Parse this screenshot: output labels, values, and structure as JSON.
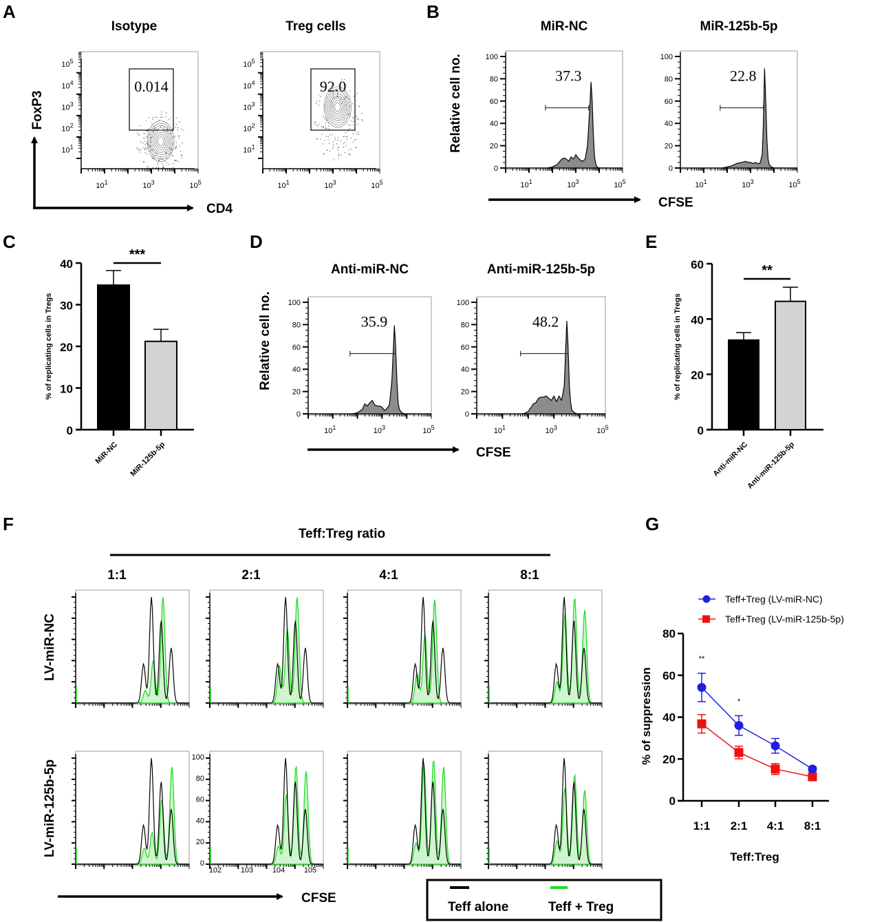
{
  "chart_data": [
    {
      "panel": "A",
      "type": "scatter",
      "subtype": "flow-contour",
      "xlabel": "CD4",
      "ylabel": "FoxP3",
      "x_scale": "log",
      "y_scale": "log",
      "xticks": [
        "10^1",
        "10^3",
        "10^5"
      ],
      "yticks": [
        "10^1",
        "10^2",
        "10^3",
        "10^4",
        "10^5"
      ],
      "plots": [
        {
          "title": "Isotype",
          "gate_value": "0.014",
          "population_center_log": [
            3.4,
            1.4
          ]
        },
        {
          "title": "Treg cells",
          "gate_value": "92.0",
          "population_center_log": [
            3.2,
            3.0
          ]
        }
      ]
    },
    {
      "panel": "B",
      "type": "area",
      "subtype": "flow-histogram",
      "xlabel": "CFSE",
      "ylabel": "Relative cell no.",
      "x_scale": "log",
      "xticks": [
        "10^1",
        "10^3",
        "10^5"
      ],
      "yticks": [
        0,
        20,
        40,
        60,
        80,
        100
      ],
      "ylim": [
        0,
        100
      ],
      "plots": [
        {
          "title": "MiR-NC",
          "gate_value": "37.3",
          "peak_height": 77,
          "x_log": [
            1.8,
            2.0,
            2.2,
            2.4,
            2.5,
            2.6,
            2.7,
            2.8,
            2.9,
            3.0,
            3.1,
            3.2,
            3.3,
            3.4,
            3.5,
            3.6,
            3.65,
            3.7,
            3.75,
            3.8,
            3.85,
            3.9,
            4.0,
            4.1,
            4.3
          ],
          "y": [
            0,
            1,
            3,
            8,
            9,
            8,
            6,
            10,
            8,
            12,
            9,
            7,
            6,
            8,
            20,
            55,
            77,
            60,
            30,
            10,
            4,
            1,
            0,
            0,
            0
          ]
        },
        {
          "title": "MiR-125b-5p",
          "gate_value": "22.8",
          "peak_height": 89,
          "x_log": [
            1.8,
            2.0,
            2.2,
            2.4,
            2.6,
            2.8,
            2.9,
            3.0,
            3.1,
            3.2,
            3.3,
            3.4,
            3.5,
            3.55,
            3.6,
            3.65,
            3.7,
            3.75,
            3.8,
            3.9,
            4.0,
            4.3
          ],
          "y": [
            0,
            1,
            2,
            4,
            5,
            6,
            5,
            5,
            4,
            5,
            4,
            4,
            12,
            40,
            89,
            60,
            25,
            8,
            3,
            1,
            0,
            0
          ]
        }
      ]
    },
    {
      "panel": "C",
      "type": "bar",
      "categories": [
        "MiR-NC",
        "MiR-125b-5p"
      ],
      "values": [
        34.7,
        21.2
      ],
      "errors": [
        3.5,
        2.9
      ],
      "colors": [
        "#000000",
        "#d3d3d3"
      ],
      "ylabel": "% of replicating cells in Tregs",
      "ylim": [
        0,
        40
      ],
      "yticks": [
        0,
        10,
        20,
        30,
        40
      ],
      "significance": "***"
    },
    {
      "panel": "D",
      "type": "area",
      "subtype": "flow-histogram",
      "xlabel": "CFSE",
      "ylabel": "Relative cell no.",
      "x_scale": "log",
      "xticks": [
        "10^1",
        "10^3",
        "10^5"
      ],
      "yticks": [
        0,
        20,
        40,
        60,
        80,
        100
      ],
      "ylim": [
        0,
        100
      ],
      "plots": [
        {
          "title": "Anti-miR-NC",
          "gate_value": "35.9",
          "peak_height": 79,
          "x_log": [
            1.8,
            2.0,
            2.2,
            2.3,
            2.4,
            2.5,
            2.6,
            2.7,
            2.8,
            2.9,
            3.0,
            3.1,
            3.2,
            3.3,
            3.4,
            3.5,
            3.55,
            3.6,
            3.65,
            3.7,
            3.8,
            3.9,
            4.0,
            4.3
          ],
          "y": [
            0,
            1,
            4,
            9,
            7,
            10,
            12,
            8,
            7,
            7,
            6,
            3,
            5,
            8,
            30,
            79,
            60,
            30,
            10,
            4,
            1,
            0,
            0,
            0
          ]
        },
        {
          "title": "Anti-miR-125b-5p",
          "gate_value": "48.2",
          "peak_height": 83,
          "x_log": [
            1.8,
            2.0,
            2.2,
            2.3,
            2.4,
            2.5,
            2.6,
            2.7,
            2.8,
            2.9,
            3.0,
            3.1,
            3.2,
            3.3,
            3.4,
            3.5,
            3.55,
            3.6,
            3.65,
            3.7,
            3.8,
            3.9,
            4.0,
            4.3
          ],
          "y": [
            0,
            2,
            9,
            10,
            14,
            15,
            15,
            16,
            14,
            12,
            16,
            11,
            16,
            12,
            25,
            83,
            60,
            25,
            10,
            3,
            1,
            0,
            0,
            0
          ]
        }
      ]
    },
    {
      "panel": "E",
      "type": "bar",
      "categories": [
        "Anti-miR-NC",
        "Anti-miR-125b-5p"
      ],
      "values": [
        32.4,
        46.4
      ],
      "errors": [
        2.7,
        5.1
      ],
      "colors": [
        "#000000",
        "#d3d3d3"
      ],
      "ylabel": "% of replicating cells in Tregs",
      "ylim": [
        0,
        60
      ],
      "yticks": [
        0,
        20,
        40,
        60
      ],
      "significance": "**"
    },
    {
      "panel": "F",
      "type": "area",
      "subtype": "flow-histogram-overlay",
      "header": "Teff:Treg ratio",
      "columns": [
        "1:1",
        "2:1",
        "4:1",
        "8:1"
      ],
      "rows": [
        "LV-miR-NC",
        "LV-miR-125b-5p"
      ],
      "xlabel": "CFSE",
      "legend": [
        {
          "label": "Teff alone",
          "color": "#000000"
        },
        {
          "label": "Teff + Treg",
          "color": "#22dd22"
        }
      ],
      "inset_ticks": {
        "y": [
          0,
          20,
          40,
          60,
          80,
          100
        ],
        "x": [
          "10^2",
          "10^3",
          "10^4",
          "10^5"
        ]
      },
      "teff_alone_peaks": [
        37,
        100,
        78,
        52
      ],
      "teff_treg_peaks": {
        "LV-miR-NC": [
          [
            12,
            40,
            100,
            0
          ],
          [
            35,
            70,
            100,
            0
          ],
          [
            28,
            65,
            98,
            0
          ],
          [
            20,
            85,
            100,
            88
          ]
        ],
        "LV-miR-125b-5p": [
          [
            15,
            30,
            62,
            92
          ],
          [
            17,
            66,
            93,
            88
          ],
          [
            20,
            95,
            99,
            92
          ],
          [
            22,
            72,
            85,
            70
          ]
        ]
      }
    },
    {
      "panel": "G",
      "type": "line",
      "categories": [
        "1:1",
        "2:1",
        "4:1",
        "8:1"
      ],
      "xlabel": "Teff:Treg",
      "ylabel": "% of suppression",
      "ylim": [
        0,
        80
      ],
      "yticks": [
        0,
        20,
        40,
        60,
        80
      ],
      "legend_position": "top",
      "series": [
        {
          "name": "Teff+Treg (LV-miR-NC)",
          "color": "#1f1fe0",
          "marker": "circle",
          "values": [
            54.2,
            36.0,
            26.3,
            15.2
          ],
          "errors": [
            6.8,
            4.7,
            3.5,
            1.0
          ]
        },
        {
          "name": "Teff+Treg (LV-miR-125b-5p)",
          "color": "#ee1111",
          "marker": "square",
          "values": [
            36.8,
            23.1,
            15.2,
            11.5
          ],
          "errors": [
            4.4,
            3.0,
            2.6,
            1.0
          ]
        }
      ],
      "annotations": [
        {
          "category": "1:1",
          "text": "**"
        },
        {
          "category": "2:1",
          "text": "*"
        }
      ]
    }
  ],
  "labels": {
    "A": "A",
    "B": "B",
    "C": "C",
    "D": "D",
    "E": "E",
    "F": "F",
    "G": "G"
  }
}
